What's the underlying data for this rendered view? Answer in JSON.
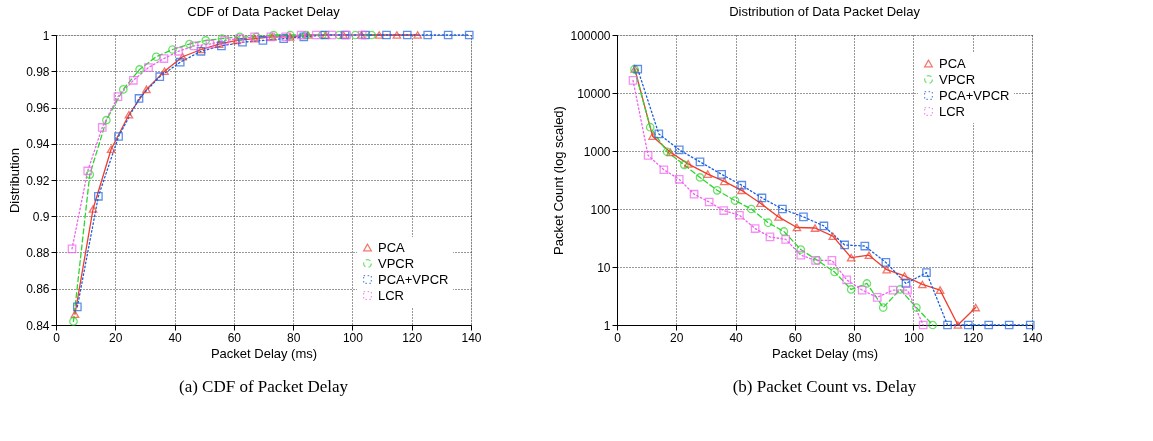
{
  "chart_data": [
    {
      "type": "line",
      "title": "CDF of Data Packet Delay",
      "xlabel": "Packet Delay (ms)",
      "ylabel": "Distribution",
      "xlim": [
        0,
        140
      ],
      "xticks": [
        0,
        20,
        40,
        60,
        80,
        100,
        120,
        140
      ],
      "ylim": [
        0.84,
        1
      ],
      "yticks": [
        0.84,
        0.86,
        0.88,
        0.9,
        0.92,
        0.94,
        0.96,
        0.98,
        1
      ],
      "grid": true,
      "legend": "bottom right",
      "annotations": [
        "(a)  CDF of Packet Delay"
      ],
      "series": [
        {
          "name": "PCA",
          "color": "#f03c2c",
          "marker": "triangle",
          "line_style": "solid",
          "x": [
            6.4,
            12.5,
            18.6,
            24.6,
            30.5,
            36.6,
            42.7,
            49,
            55,
            61,
            67,
            73,
            79,
            85,
            91,
            97,
            103,
            109,
            115,
            122
          ],
          "values": [
            0.846,
            0.904,
            0.937,
            0.956,
            0.97,
            0.98,
            0.988,
            0.992,
            0.995,
            0.997,
            0.998,
            0.999,
            0.999,
            1,
            1,
            1,
            1,
            1,
            1,
            1
          ]
        },
        {
          "name": "VPCR",
          "color": "#2ed62e",
          "marker": "circle",
          "line_style": "dashed",
          "x": [
            5.9,
            11.4,
            17,
            22.7,
            28.2,
            33.8,
            39.3,
            45,
            50.5,
            56,
            62,
            67.6,
            73.4,
            79,
            84.3,
            89.8,
            95.5,
            101,
            106.5
          ],
          "values": [
            0.842,
            0.923,
            0.953,
            0.97,
            0.981,
            0.988,
            0.992,
            0.995,
            0.997,
            0.998,
            0.999,
            0.999,
            1,
            1,
            1,
            1,
            1,
            1,
            1
          ]
        },
        {
          "name": "PCA+VPCR",
          "color": "#1a5fe0",
          "marker": "square",
          "line_style": "dotted",
          "x": [
            7.2,
            14.3,
            21.1,
            28,
            35,
            41.9,
            48.9,
            55.8,
            62.9,
            69.8,
            76.8,
            83.6,
            90.7,
            97.5,
            104.4,
            111.5,
            118.5,
            125.4,
            132.3,
            139.4
          ],
          "values": [
            0.85,
            0.911,
            0.944,
            0.965,
            0.977,
            0.985,
            0.991,
            0.994,
            0.996,
            0.997,
            0.998,
            0.999,
            1,
            1,
            1,
            1,
            1,
            1,
            1,
            1
          ]
        },
        {
          "name": "LCR",
          "color": "#f060f0",
          "marker": "square",
          "line_style": "dotted",
          "x": [
            5.4,
            10.7,
            15.6,
            20.9,
            26.1,
            31.2,
            36.4,
            41.3,
            46.6,
            51.9,
            56.9,
            62,
            67,
            72.5,
            77.5,
            82.7,
            87.8,
            93.1,
            98,
            103.3
          ],
          "values": [
            0.882,
            0.925,
            0.949,
            0.966,
            0.975,
            0.982,
            0.987,
            0.991,
            0.994,
            0.995,
            0.997,
            0.998,
            0.999,
            0.999,
            0.999,
            1,
            1,
            1,
            1,
            1
          ]
        }
      ]
    },
    {
      "type": "line",
      "title": "Distribution of Data Packet Delay",
      "xlabel": "Packet Delay (ms)",
      "ylabel": "Packet Count (log scaled)",
      "log": true,
      "xlim": [
        0,
        140
      ],
      "xticks": [
        0,
        20,
        40,
        60,
        80,
        100,
        120,
        140
      ],
      "ylim": [
        1,
        100000
      ],
      "yticks": [
        1,
        10,
        100,
        1000,
        10000,
        100000
      ],
      "grid": true,
      "legend": "top right",
      "annotations": [
        "(b)  Packet Count vs. Delay"
      ],
      "series": [
        {
          "name": "PCA",
          "color": "#f03c2c",
          "marker": "triangle",
          "line_style": "solid",
          "x": [
            6,
            12,
            18,
            24,
            30.6,
            36.2,
            42,
            48.4,
            54.5,
            60.7,
            66.8,
            72.8,
            79,
            85,
            91,
            97,
            103,
            109,
            115,
            121
          ],
          "values": [
            26000,
            1800,
            950,
            600,
            400,
            300,
            210,
            126,
            73,
            48,
            47,
            34,
            14.5,
            16,
            9,
            7,
            5,
            4,
            1,
            2
          ]
        },
        {
          "name": "VPCR",
          "color": "#2ed62e",
          "marker": "circle",
          "line_style": "dashed",
          "x": [
            5.9,
            11.2,
            16.9,
            22.7,
            28,
            33.8,
            39.8,
            45.3,
            51,
            56.3,
            62,
            67.6,
            73.4,
            79,
            84.3,
            89.8,
            95.5,
            101,
            106.5
          ],
          "values": [
            25700,
            2570,
            970,
            575,
            350,
            210,
            140,
            100,
            58,
            41,
            20,
            13,
            8.2,
            4.1,
            5.2,
            2,
            4.1,
            2,
            1
          ]
        },
        {
          "name": "PCA+VPCR",
          "color": "#1a5fe0",
          "marker": "square",
          "line_style": "dotted",
          "x": [
            7,
            14.1,
            21,
            28,
            35.3,
            42.1,
            48.9,
            55.8,
            62.9,
            69.8,
            76.8,
            83.6,
            90.7,
            97.5,
            104.4,
            111.5,
            118.5,
            125.4,
            132.3,
            139.4
          ],
          "values": [
            25700,
            1970,
            1050,
            650,
            395,
            257,
            155,
            100,
            73,
            51,
            24,
            23,
            12,
            5.2,
            8,
            1,
            1,
            1,
            1,
            1
          ]
        },
        {
          "name": "LCR",
          "color": "#f060f0",
          "marker": "square",
          "line_style": "dotted",
          "x": [
            5.4,
            10.5,
            15.8,
            21,
            26,
            31.1,
            36,
            41.3,
            46.6,
            51.6,
            56.9,
            62,
            67,
            72.5,
            77.5,
            82.7,
            87.8,
            93.1,
            98,
            103.3
          ],
          "values": [
            16500,
            840,
            475,
            325,
            180,
            132,
            94,
            78,
            46,
            33,
            30,
            16,
            13,
            13,
            6,
            4,
            3,
            4,
            4,
            1
          ]
        }
      ]
    }
  ]
}
